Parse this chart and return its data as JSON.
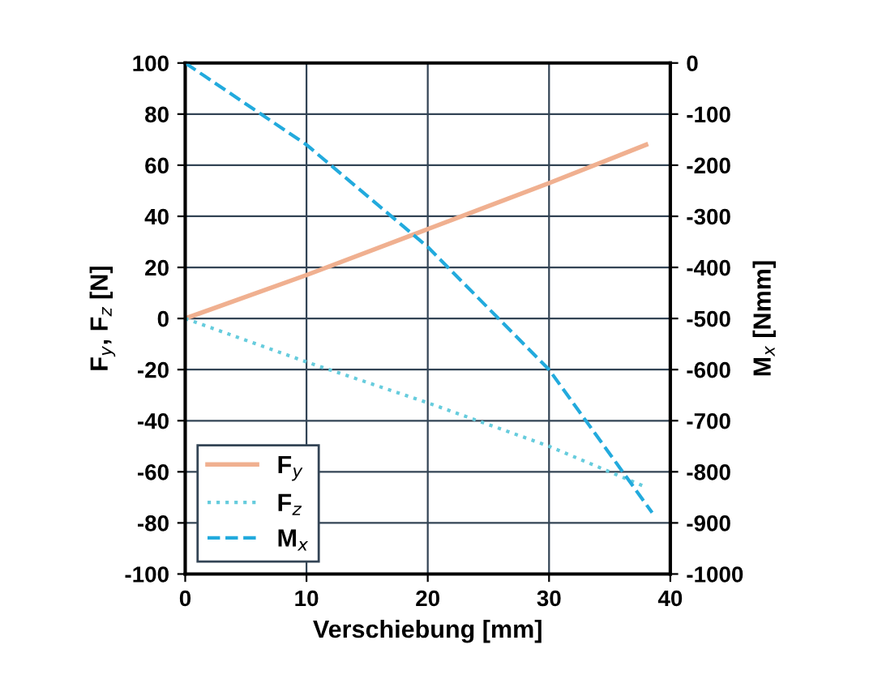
{
  "chart_data": {
    "type": "line",
    "xlabel": "Verschiebung [mm]",
    "ylabel": "F$_{y}$, F$_{z}$ [N]",
    "y2label": "M$_{x}$ [Nmm]",
    "xlim": [
      0,
      40
    ],
    "xticks": [
      0,
      10,
      20,
      30,
      40
    ],
    "ylim": [
      -100,
      100
    ],
    "yticks": [
      -100,
      -80,
      -60,
      -40,
      -20,
      0,
      20,
      40,
      60,
      80,
      100
    ],
    "y2lim": [
      -1000,
      0
    ],
    "y2ticks": [
      -1000,
      -900,
      -800,
      -700,
      -600,
      -500,
      -400,
      -300,
      -200,
      -100,
      0
    ],
    "grid": true,
    "legend": "bottom left",
    "series": [
      {
        "name": "F$_{y}$",
        "color": "#f0b090",
        "line_style": "solid",
        "x": [
          0,
          10,
          20,
          30,
          38
        ],
        "values": [
          0,
          17,
          35,
          53,
          68
        ]
      },
      {
        "name": "F$_{z}$",
        "color": "#66ccdd",
        "line_style": "dotted",
        "x": [
          0,
          10,
          20,
          30,
          38
        ],
        "values": [
          0,
          -17,
          -33,
          -50,
          -66
        ]
      },
      {
        "name": "M$_{x}$",
        "color": "#22aadd",
        "line_style": "dashed",
        "axis": "y2",
        "x": [
          0,
          10,
          20,
          30,
          38.5
        ],
        "values": [
          0,
          -160,
          -360,
          -600,
          -880
        ]
      }
    ]
  }
}
